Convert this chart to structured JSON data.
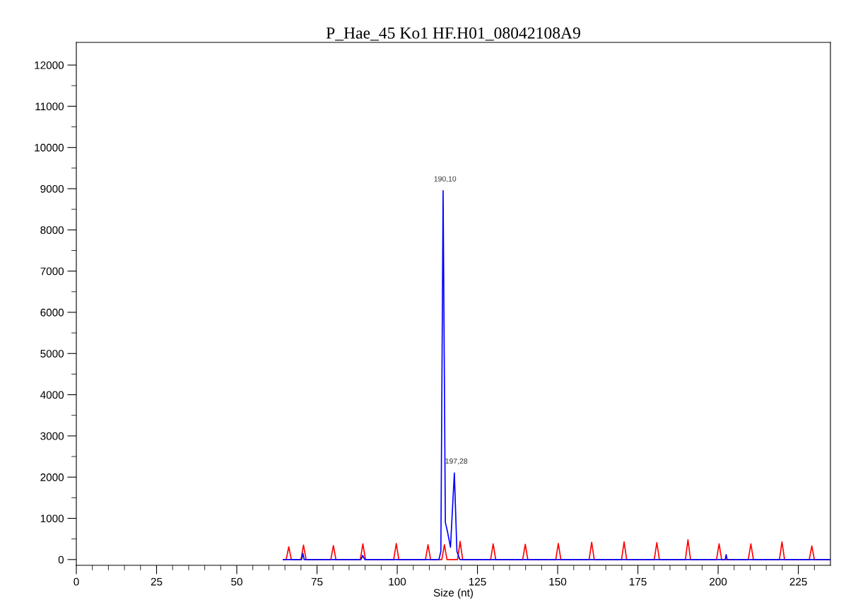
{
  "chart_data": {
    "type": "line",
    "title": "P_Hae_45 Ko1 HF.H01_08042108A9",
    "xlabel": "Size (nt)",
    "series": [
      {
        "color": "#ff0000",
        "x": [
          64.5,
          65.4,
          66.2,
          67.0,
          70.0,
          70.8,
          71.6,
          79.3,
          80.1,
          80.9,
          88.5,
          89.3,
          90.1,
          98.9,
          99.7,
          100.5,
          108.8,
          109.6,
          110.4,
          113.9,
          114.7,
          115.5,
          118.8,
          119.6,
          120.4,
          129.1,
          129.9,
          130.7,
          139.1,
          139.9,
          140.7,
          149.4,
          150.2,
          151.0,
          159.8,
          160.6,
          161.4,
          169.9,
          170.7,
          171.5,
          180.1,
          180.9,
          181.7,
          189.8,
          190.6,
          191.4,
          199.5,
          200.3,
          201.1,
          209.4,
          210.2,
          211.0,
          219.1,
          219.9,
          220.7,
          228.4,
          229.2,
          230.0,
          235
        ],
        "values": [
          0,
          0,
          310,
          0,
          0,
          350,
          0,
          0,
          340,
          0,
          0,
          380,
          0,
          0,
          390,
          0,
          0,
          360,
          0,
          0,
          360,
          0,
          0,
          440,
          0,
          0,
          380,
          0,
          0,
          370,
          0,
          0,
          390,
          0,
          0,
          420,
          0,
          0,
          430,
          0,
          0,
          410,
          0,
          0,
          480,
          0,
          0,
          380,
          0,
          0,
          380,
          0,
          0,
          430,
          0,
          0,
          330,
          0,
          0
        ]
      },
      {
        "color": "#0000ff",
        "x": [
          64.5,
          70.2,
          70.6,
          71.0,
          88.7,
          89.2,
          89.9,
          113.0,
          113.6,
          114.3,
          115.0,
          115.6,
          116.6,
          117.8,
          118.6,
          119.5,
          202.2,
          202.5,
          202.8,
          235
        ],
        "values": [
          0,
          0,
          150,
          0,
          0,
          100,
          0,
          0,
          200,
          8950,
          900,
          700,
          300,
          2100,
          200,
          0,
          0,
          120,
          0,
          0
        ]
      }
    ],
    "annotations": [
      {
        "text": "190,10",
        "x": 114.3,
        "y": 8950
      },
      {
        "text": "197,28",
        "x": 117.8,
        "y": 2100
      }
    ],
    "xlim": [
      0,
      235
    ],
    "ylim": [
      -140,
      12550
    ],
    "xticks": [
      0,
      {
        "value": 5,
        "label": null
      },
      {
        "value": 10,
        "label": null
      },
      {
        "value": 15,
        "label": null
      },
      {
        "value": 20,
        "label": null
      },
      25,
      {
        "value": 30,
        "label": null
      },
      {
        "value": 35,
        "label": null
      },
      {
        "value": 40,
        "label": null
      },
      {
        "value": 45,
        "label": null
      },
      50,
      {
        "value": 55,
        "label": null
      },
      {
        "value": 60,
        "label": null
      },
      {
        "value": 65,
        "label": null
      },
      {
        "value": 70,
        "label": null
      },
      75,
      {
        "value": 80,
        "label": null
      },
      {
        "value": 85,
        "label": null
      },
      {
        "value": 90,
        "label": null
      },
      {
        "value": 95,
        "label": null
      },
      100,
      {
        "value": 105,
        "label": null
      },
      {
        "value": 110,
        "label": null
      },
      {
        "value": 115,
        "label": null
      },
      {
        "value": 120,
        "label": null
      },
      125,
      {
        "value": 130,
        "label": null
      },
      {
        "value": 135,
        "label": null
      },
      {
        "value": 140,
        "label": null
      },
      {
        "value": 145,
        "label": null
      },
      150,
      {
        "value": 155,
        "label": null
      },
      {
        "value": 160,
        "label": null
      },
      {
        "value": 165,
        "label": null
      },
      {
        "value": 170,
        "label": null
      },
      175,
      {
        "value": 180,
        "label": null
      },
      {
        "value": 185,
        "label": null
      },
      {
        "value": 190,
        "label": null
      },
      {
        "value": 195,
        "label": null
      },
      200,
      {
        "value": 205,
        "label": null
      },
      {
        "value": 210,
        "label": null
      },
      {
        "value": 215,
        "label": null
      },
      {
        "value": 220,
        "label": null
      },
      225,
      {
        "value": 230,
        "label": null
      }
    ],
    "yticks": [
      0,
      {
        "value": 500,
        "label": null
      },
      1000,
      {
        "value": 1500,
        "label": null
      },
      2000,
      {
        "value": 2500,
        "label": null
      },
      3000,
      {
        "value": 3500,
        "label": null
      },
      4000,
      {
        "value": 4500,
        "label": null
      },
      5000,
      {
        "value": 5500,
        "label": null
      },
      6000,
      {
        "value": 6500,
        "label": null
      },
      7000,
      {
        "value": 7500,
        "label": null
      },
      8000,
      {
        "value": 8500,
        "label": null
      },
      9000,
      {
        "value": 9500,
        "label": null
      },
      10000,
      {
        "value": 10500,
        "label": null
      },
      11000,
      {
        "value": 11500,
        "label": null
      },
      12000
    ],
    "grid": false,
    "marker": "none",
    "line_style": "solid"
  }
}
